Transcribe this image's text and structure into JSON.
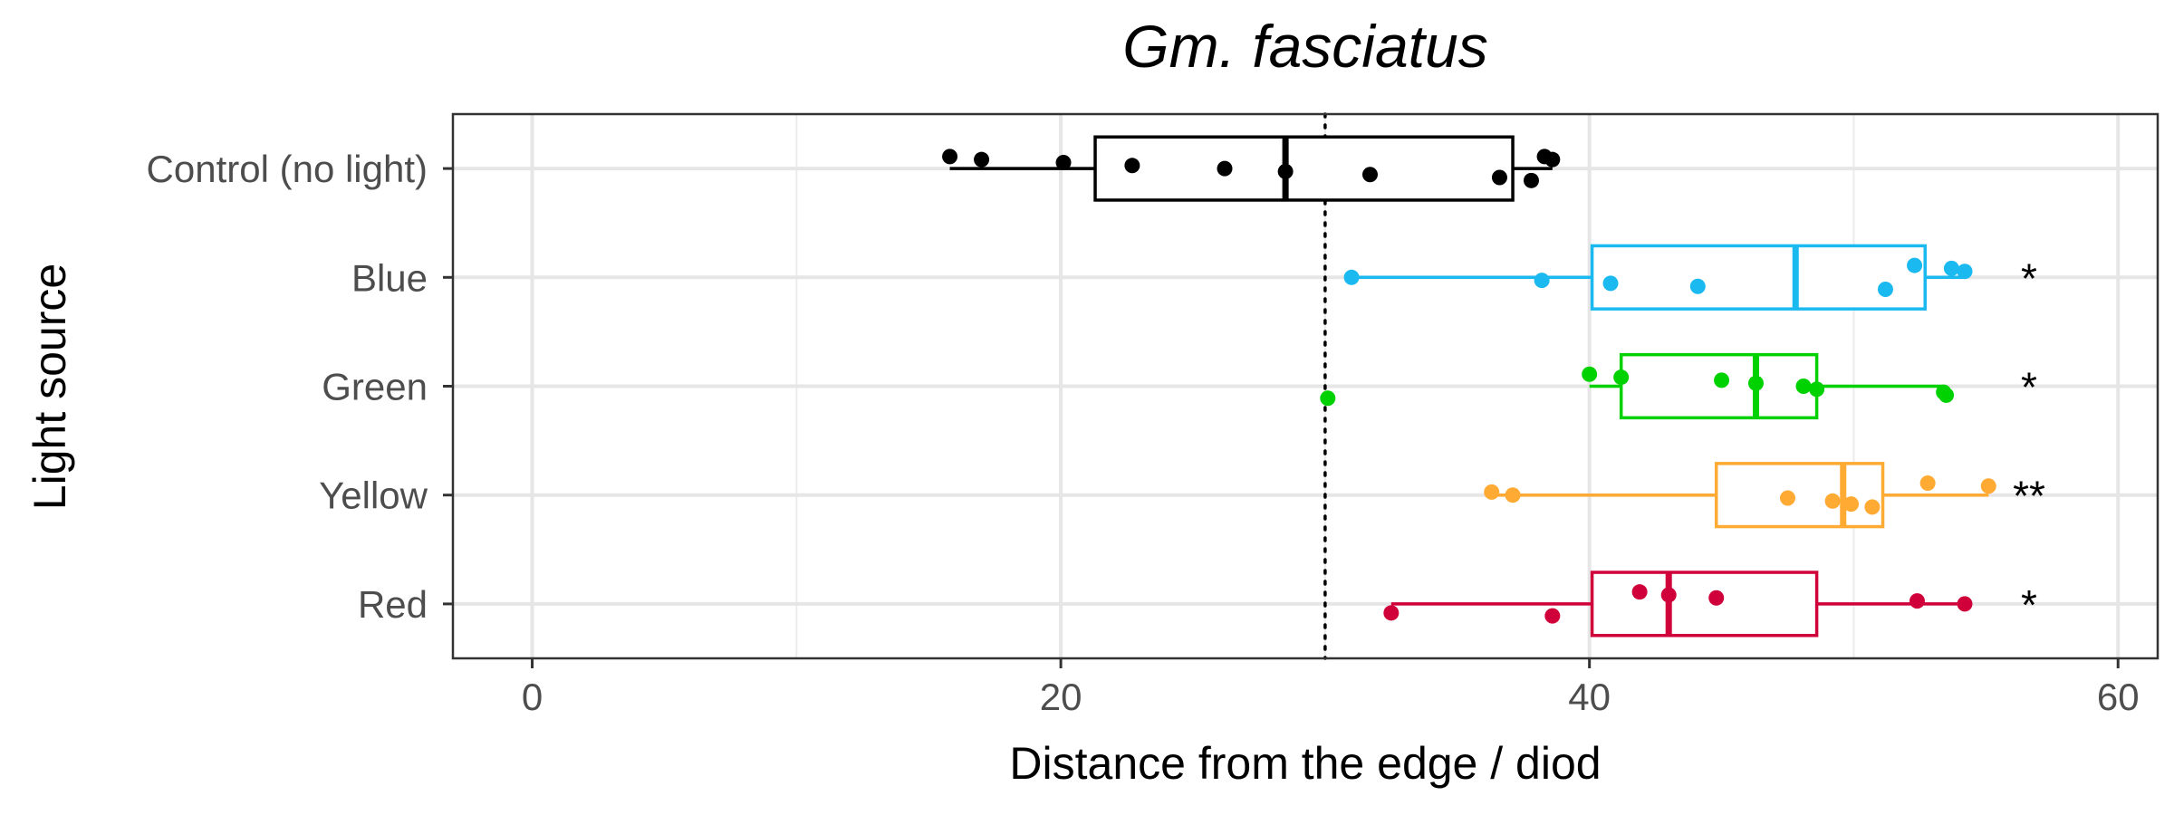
{
  "chart_data": {
    "type": "boxplot",
    "title": "Gm. fasciatus",
    "xlabel": "Distance from the edge / diod",
    "ylabel": "Light source",
    "xlim": [
      -3,
      61.5
    ],
    "xticks": [
      0,
      20,
      40,
      60
    ],
    "grid": true,
    "legend": "none",
    "reference_line": {
      "x": 30,
      "style": "dotted",
      "color": "#000000"
    },
    "categories": [
      "Control (no light)",
      "Blue",
      "Green",
      "Yellow",
      "Red"
    ],
    "series": [
      {
        "category": "Control (no light)",
        "color": "#000000",
        "whisker_low": 15.8,
        "q1": 21.3,
        "median": 28.5,
        "q3": 37.1,
        "whisker_high": 38.6,
        "points": [
          15.8,
          17.0,
          20.1,
          22.7,
          26.2,
          28.5,
          31.7,
          36.6,
          37.8,
          38.3,
          38.6
        ],
        "significance": ""
      },
      {
        "category": "Blue",
        "color": "#1AB9F0",
        "whisker_low": 31.0,
        "q1": 40.1,
        "median": 47.8,
        "q3": 52.7,
        "whisker_high": 54.2,
        "points": [
          31.0,
          38.2,
          40.8,
          44.1,
          51.2,
          52.3,
          53.7,
          54.2
        ],
        "significance": "*"
      },
      {
        "category": "Green",
        "color": "#00D100",
        "whisker_low": 40.0,
        "q1": 41.2,
        "median": 46.3,
        "q3": 48.6,
        "whisker_high": 53.4,
        "points": [
          30.1,
          40.0,
          41.2,
          45.0,
          46.3,
          48.1,
          48.6,
          53.4,
          53.5
        ],
        "significance": "*"
      },
      {
        "category": "Yellow",
        "color": "#FFAA33",
        "whisker_low": 36.3,
        "q1": 44.8,
        "median": 49.6,
        "q3": 51.1,
        "whisker_high": 55.1,
        "points": [
          36.3,
          37.1,
          47.5,
          49.2,
          49.9,
          50.7,
          52.8,
          55.1
        ],
        "significance": "**"
      },
      {
        "category": "Red",
        "color": "#D0003A",
        "whisker_low": 32.5,
        "q1": 40.1,
        "median": 43.0,
        "q3": 48.6,
        "whisker_high": 54.2,
        "points": [
          32.5,
          38.6,
          41.9,
          43.0,
          44.8,
          52.4,
          54.2
        ],
        "significance": "*"
      }
    ]
  }
}
